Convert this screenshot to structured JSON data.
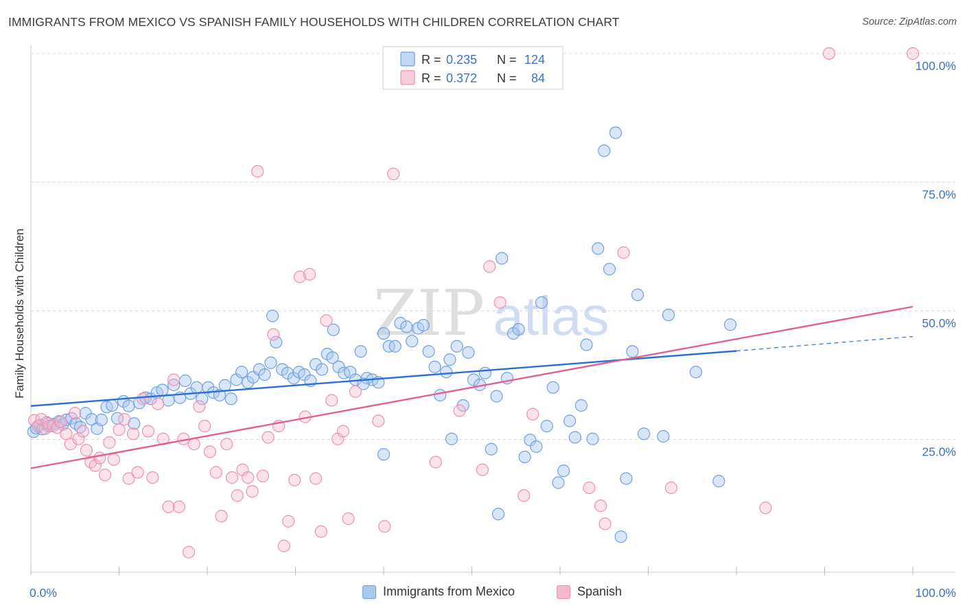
{
  "header": {
    "title": "IMMIGRANTS FROM MEXICO VS SPANISH FAMILY HOUSEHOLDS WITH CHILDREN CORRELATION CHART",
    "source": "Source: ZipAtlas.com"
  },
  "watermark": {
    "zip": "ZIP",
    "atlas": "atlas"
  },
  "colors": {
    "blue_fill": "#a9c8f0",
    "blue_stroke": "#6f9fe0",
    "blue_line": "#2a6fd6",
    "pink_fill": "#f6b9cc",
    "pink_stroke": "#ef8fb0",
    "pink_line": "#e2608f",
    "axis_text": "#3a74c9",
    "grid": "#d8d8d8"
  },
  "legend": {
    "rows": [
      {
        "r_label": "R =",
        "r_value": "0.235",
        "n_label": "N =",
        "n_value": "124"
      },
      {
        "r_label": "R =",
        "r_value": "0.372",
        "n_label": "N =",
        "n_value": "84"
      }
    ]
  },
  "chart_data": {
    "type": "scatter",
    "title": "IMMIGRANTS FROM MEXICO VS SPANISH FAMILY HOUSEHOLDS WITH CHILDREN CORRELATION CHART",
    "xlabel": "",
    "ylabel": "Family Households with Children",
    "xlim": [
      0,
      100
    ],
    "ylim": [
      0,
      100
    ],
    "x_tick_labels": [
      "0.0%",
      "100.0%"
    ],
    "y_tick_labels": [
      "25.0%",
      "50.0%",
      "75.0%",
      "100.0%"
    ],
    "y_ticks": [
      25,
      50,
      75,
      100
    ],
    "legend_position": "top-center",
    "series": [
      {
        "name": "Immigrants from Mexico",
        "r": 0.235,
        "n": 124,
        "trend": {
          "x0": 0,
          "y0": 31.5,
          "x1": 80,
          "y1": 42.2,
          "dashed_to_x": 100,
          "dashed_to_y": 45.0
        },
        "points": [
          [
            0.3,
            26.5
          ],
          [
            0.6,
            27.2
          ],
          [
            1,
            27.8
          ],
          [
            1.3,
            27.0
          ],
          [
            1.8,
            28.3
          ],
          [
            2.1,
            27.6
          ],
          [
            2.6,
            28.0
          ],
          [
            3.2,
            28.5
          ],
          [
            3.6,
            27.9
          ],
          [
            4,
            28.8
          ],
          [
            4.6,
            29.1
          ],
          [
            5.1,
            28.1
          ],
          [
            5.6,
            27.4
          ],
          [
            6.2,
            30.1
          ],
          [
            6.9,
            28.9
          ],
          [
            7.5,
            27.1
          ],
          [
            8,
            28.8
          ],
          [
            8.6,
            31.3
          ],
          [
            9.2,
            31.6
          ],
          [
            9.8,
            29.1
          ],
          [
            10.5,
            32.4
          ],
          [
            11.1,
            31.5
          ],
          [
            11.7,
            28.1
          ],
          [
            12.3,
            32.1
          ],
          [
            13,
            33.1
          ],
          [
            13.6,
            32.9
          ],
          [
            14.3,
            34.1
          ],
          [
            14.9,
            34.6
          ],
          [
            15.6,
            32.6
          ],
          [
            16.2,
            35.6
          ],
          [
            16.9,
            33.1
          ],
          [
            17.5,
            36.4
          ],
          [
            18.1,
            33.9
          ],
          [
            18.8,
            35.1
          ],
          [
            19.4,
            32.9
          ],
          [
            20.1,
            35.1
          ],
          [
            20.7,
            34.1
          ],
          [
            21.4,
            33.6
          ],
          [
            22,
            35.5
          ],
          [
            22.7,
            32.9
          ],
          [
            23.3,
            36.6
          ],
          [
            23.9,
            38.1
          ],
          [
            24.6,
            36.1
          ],
          [
            25.2,
            37.1
          ],
          [
            25.9,
            38.6
          ],
          [
            26.5,
            37.6
          ],
          [
            27.2,
            39.9
          ],
          [
            27.8,
            43.9
          ],
          [
            28.5,
            38.6
          ],
          [
            29.1,
            37.9
          ],
          [
            29.8,
            36.9
          ],
          [
            30.4,
            38.1
          ],
          [
            31,
            37.6
          ],
          [
            31.7,
            36.4
          ],
          [
            32.3,
            39.6
          ],
          [
            33,
            38.6
          ],
          [
            33.6,
            41.6
          ],
          [
            34.2,
            40.9
          ],
          [
            34.9,
            39.1
          ],
          [
            35.5,
            37.9
          ],
          [
            36.2,
            38.1
          ],
          [
            36.8,
            36.6
          ],
          [
            37.4,
            42.1
          ],
          [
            38.1,
            36.9
          ],
          [
            38.7,
            36.6
          ],
          [
            39.4,
            36.1
          ],
          [
            40,
            45.6
          ],
          [
            40.6,
            43.1
          ],
          [
            41.3,
            43.1
          ],
          [
            41.9,
            47.6
          ],
          [
            42.6,
            46.9
          ],
          [
            43.2,
            44.1
          ],
          [
            43.9,
            46.6
          ],
          [
            44.5,
            47.2
          ],
          [
            45.1,
            42.1
          ],
          [
            45.8,
            39.1
          ],
          [
            46.4,
            33.6
          ],
          [
            47.1,
            38.1
          ],
          [
            47.7,
            25.1
          ],
          [
            48.3,
            43.1
          ],
          [
            49,
            31.6
          ],
          [
            49.6,
            41.9
          ],
          [
            50.2,
            36.6
          ],
          [
            50.9,
            35.6
          ],
          [
            51.5,
            37.9
          ],
          [
            52.2,
            23.1
          ],
          [
            52.8,
            33.4
          ],
          [
            53.4,
            60.2
          ],
          [
            54,
            36.9
          ],
          [
            54.7,
            45.6
          ],
          [
            55.3,
            46.4
          ],
          [
            56,
            21.6
          ],
          [
            56.6,
            24.9
          ],
          [
            57.3,
            23.6
          ],
          [
            57.9,
            51.6
          ],
          [
            58.5,
            27.6
          ],
          [
            59.2,
            35.1
          ],
          [
            59.8,
            16.6
          ],
          [
            60.4,
            18.9
          ],
          [
            61.1,
            28.6
          ],
          [
            61.7,
            25.4
          ],
          [
            62.4,
            31.6
          ],
          [
            63,
            43.4
          ],
          [
            63.7,
            25.1
          ],
          [
            64.3,
            62.1
          ],
          [
            65,
            81.1
          ],
          [
            65.6,
            58.1
          ],
          [
            66.3,
            84.6
          ],
          [
            66.9,
            6.1
          ],
          [
            67.5,
            17.4
          ],
          [
            68.2,
            42.1
          ],
          [
            68.8,
            53.1
          ],
          [
            69.5,
            26.1
          ],
          [
            71.7,
            25.6
          ],
          [
            72.3,
            49.2
          ],
          [
            75.4,
            38.1
          ],
          [
            78,
            16.9
          ],
          [
            79.3,
            47.3
          ],
          [
            40,
            22.1
          ],
          [
            34.3,
            46.3
          ],
          [
            47.5,
            40.5
          ],
          [
            53,
            10.5
          ],
          [
            27.4,
            49.0
          ],
          [
            37.7,
            35.8
          ]
        ]
      },
      {
        "name": "Spanish",
        "r": 0.372,
        "n": 84,
        "trend": {
          "x0": 0,
          "y0": 19.4,
          "x1": 100,
          "y1": 50.8
        },
        "points": [
          [
            0.4,
            28.7
          ],
          [
            0.8,
            27.6
          ],
          [
            1.2,
            28.9
          ],
          [
            1.6,
            27.1
          ],
          [
            2,
            28.1
          ],
          [
            2.5,
            27.6
          ],
          [
            3,
            27.3
          ],
          [
            3.4,
            28.4
          ],
          [
            4,
            26.1
          ],
          [
            4.5,
            24.1
          ],
          [
            5,
            30.1
          ],
          [
            5.4,
            25.1
          ],
          [
            5.9,
            26.6
          ],
          [
            6.3,
            22.9
          ],
          [
            6.8,
            20.6
          ],
          [
            7.3,
            19.9
          ],
          [
            7.8,
            21.4
          ],
          [
            8.4,
            18.1
          ],
          [
            8.9,
            24.4
          ],
          [
            9.4,
            21.1
          ],
          [
            10,
            26.9
          ],
          [
            10.6,
            28.9
          ],
          [
            11.1,
            17.4
          ],
          [
            11.6,
            26.1
          ],
          [
            12.1,
            18.6
          ],
          [
            12.7,
            32.9
          ],
          [
            13.3,
            26.6
          ],
          [
            13.8,
            17.6
          ],
          [
            14.4,
            31.9
          ],
          [
            15,
            25.1
          ],
          [
            15.6,
            11.9
          ],
          [
            16.2,
            36.6
          ],
          [
            16.8,
            11.9
          ],
          [
            17.3,
            25.1
          ],
          [
            17.9,
            3.1
          ],
          [
            18.5,
            24.1
          ],
          [
            19.1,
            31.4
          ],
          [
            19.7,
            27.6
          ],
          [
            20.3,
            22.6
          ],
          [
            21,
            18.6
          ],
          [
            21.6,
            10.1
          ],
          [
            22.2,
            24.1
          ],
          [
            22.8,
            17.6
          ],
          [
            23.4,
            14.1
          ],
          [
            24,
            19.1
          ],
          [
            24.6,
            17.6
          ],
          [
            25.1,
            14.9
          ],
          [
            25.7,
            77.1
          ],
          [
            26.3,
            17.9
          ],
          [
            26.9,
            25.4
          ],
          [
            27.5,
            45.4
          ],
          [
            28.1,
            27.6
          ],
          [
            28.7,
            4.3
          ],
          [
            29.2,
            9.1
          ],
          [
            29.9,
            17.1
          ],
          [
            30.5,
            56.6
          ],
          [
            31.1,
            29.4
          ],
          [
            31.6,
            57.1
          ],
          [
            32.3,
            17.4
          ],
          [
            32.9,
            7.1
          ],
          [
            33.5,
            48.1
          ],
          [
            34.1,
            32.6
          ],
          [
            34.8,
            25.1
          ],
          [
            35.4,
            26.6
          ],
          [
            36,
            9.6
          ],
          [
            36.8,
            34.3
          ],
          [
            39.4,
            28.6
          ],
          [
            40.1,
            8.1
          ],
          [
            41.1,
            76.6
          ],
          [
            45.9,
            20.6
          ],
          [
            48.6,
            30.6
          ],
          [
            51.2,
            19.1
          ],
          [
            52,
            58.6
          ],
          [
            53.2,
            51.6
          ],
          [
            55.9,
            14.1
          ],
          [
            56.9,
            29.9
          ],
          [
            63.3,
            15.6
          ],
          [
            64.6,
            12.1
          ],
          [
            65.1,
            8.6
          ],
          [
            67.2,
            61.3
          ],
          [
            72.6,
            15.6
          ],
          [
            83.3,
            11.7
          ],
          [
            90.5,
            100.0
          ],
          [
            100,
            100.0
          ]
        ]
      }
    ]
  }
}
